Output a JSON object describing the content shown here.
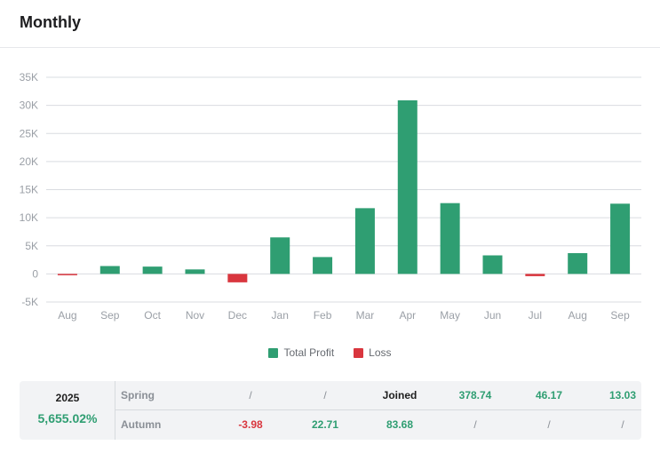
{
  "header": {
    "title": "Monthly"
  },
  "colors": {
    "profit": "#2f9e72",
    "loss": "#d9363e"
  },
  "chart_data": {
    "type": "bar",
    "title": "",
    "categories": [
      "Aug",
      "Sep",
      "Oct",
      "Nov",
      "Dec",
      "Jan",
      "Feb",
      "Mar",
      "Apr",
      "May",
      "Jun",
      "Jul",
      "Aug",
      "Sep"
    ],
    "series": [
      {
        "name": "Total Profit",
        "values": [
          -100,
          1400,
          1300,
          800,
          -1500,
          6500,
          3000,
          11700,
          30900,
          12600,
          3300,
          -400,
          3700,
          12500
        ]
      }
    ],
    "y_ticks": [
      "-5K",
      "0",
      "5K",
      "10K",
      "15K",
      "20K",
      "25K",
      "30K",
      "35K"
    ],
    "ylim": [
      -5000,
      35000
    ],
    "grid": true,
    "legend": [
      {
        "label": "Total Profit",
        "color": "#2f9e72"
      },
      {
        "label": "Loss",
        "color": "#d9363e"
      }
    ]
  },
  "table": {
    "year": "2025",
    "year_total": "5,655.02%",
    "rows": [
      {
        "label": "Spring",
        "cells": [
          {
            "text": "/",
            "tone": "neutral"
          },
          {
            "text": "/",
            "tone": "neutral"
          },
          {
            "text": "Joined",
            "tone": "dark"
          },
          {
            "text": "378.74",
            "tone": "pos"
          },
          {
            "text": "46.17",
            "tone": "pos"
          },
          {
            "text": "13.03",
            "tone": "pos"
          }
        ]
      },
      {
        "label": "Autumn",
        "cells": [
          {
            "text": "-3.98",
            "tone": "neg"
          },
          {
            "text": "22.71",
            "tone": "pos"
          },
          {
            "text": "83.68",
            "tone": "pos"
          },
          {
            "text": "/",
            "tone": "neutral"
          },
          {
            "text": "/",
            "tone": "neutral"
          },
          {
            "text": "/",
            "tone": "neutral"
          }
        ]
      }
    ]
  }
}
